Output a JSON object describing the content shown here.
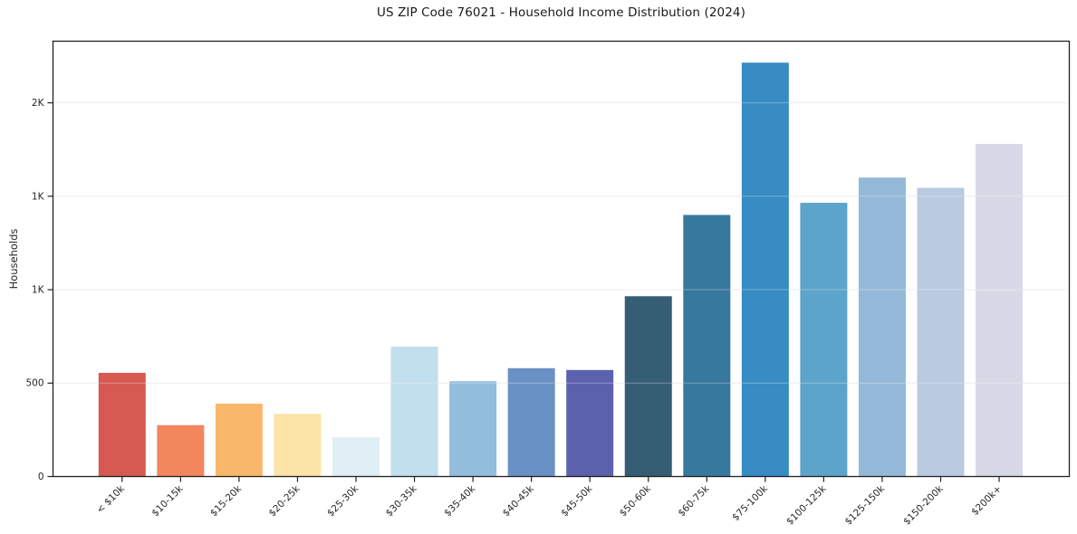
{
  "figure": {
    "background": "#ffffff"
  },
  "chart_data": {
    "type": "bar",
    "title": "US ZIP Code 76021 - Household Income Distribution (2024)",
    "xlabel": "",
    "ylabel": "Households",
    "categories": [
      "< $10k",
      "$10-15k",
      "$15-20k",
      "$20-25k",
      "$25-30k",
      "$30-35k",
      "$35-40k",
      "$40-45k",
      "$45-50k",
      "$50-60k",
      "$60-75k",
      "$75-100k",
      "$100-125k",
      "$125-150k",
      "$150-200k",
      "$200k+"
    ],
    "values": [
      555,
      275,
      390,
      335,
      210,
      695,
      510,
      580,
      570,
      965,
      1400,
      2215,
      1465,
      1600,
      1545,
      1780
    ],
    "bar_colors": [
      "#d65a52",
      "#f2875e",
      "#f9b76c",
      "#fce4a6",
      "#e0eef5",
      "#c1dfec",
      "#92bddd",
      "#6a91c5",
      "#5c61ae",
      "#355e75",
      "#37789f",
      "#368cc3",
      "#5ca4ca",
      "#94b9d8",
      "#bacae0",
      "#d7dae6"
    ],
    "yticks": {
      "values": [
        0,
        500,
        1000,
        1500,
        2000
      ],
      "labels": [
        "0",
        "500",
        "1K",
        "1K",
        "2K"
      ]
    },
    "ylim": [
      0,
      2330
    ],
    "xtick_rotation": 45,
    "grid": "horizontal",
    "legend_position": "none",
    "axis_color": "#222222",
    "tick_label_color": "#262626",
    "grid_color": "#e8e8e8"
  }
}
